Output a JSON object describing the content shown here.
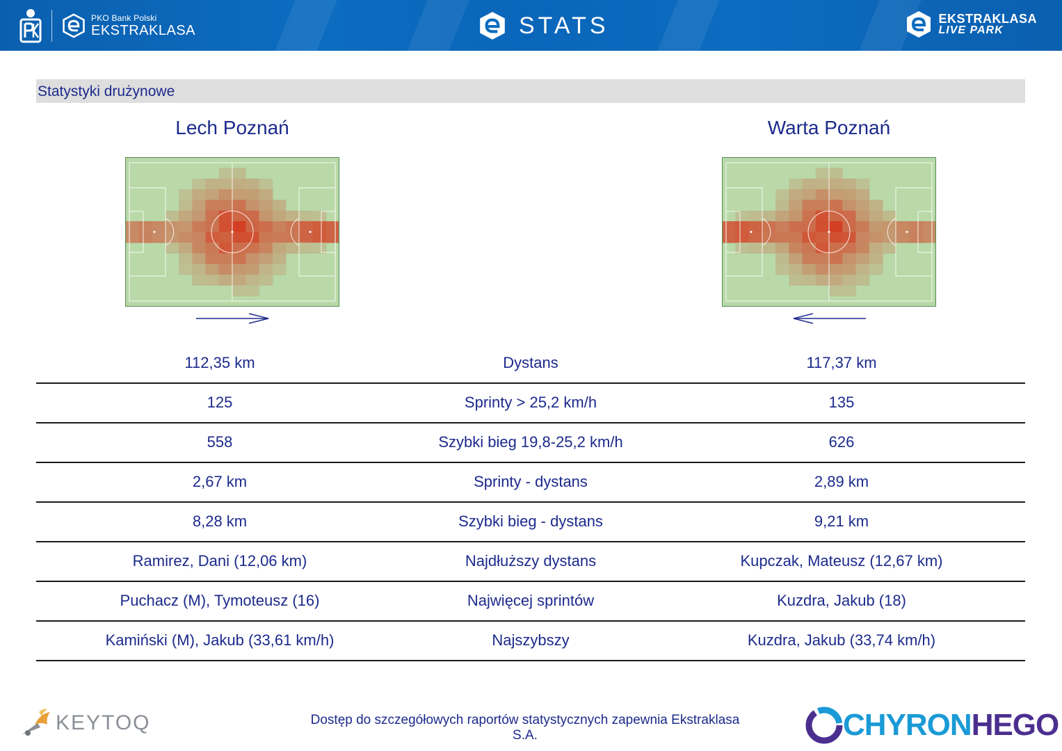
{
  "header": {
    "bank_small": "PKO Bank Polski",
    "league_name": "EKSTRAKLASA",
    "stats_title": "STATS",
    "live_line1": "EKSTRAKLASA",
    "live_line2": "LIVE PARK",
    "bar_color": "#0c6cc0"
  },
  "section": {
    "title": "Statystyki drużynowe"
  },
  "teams": {
    "home": {
      "name": "Lech Poznań",
      "attack_direction": "right"
    },
    "away": {
      "name": "Warta Poznań",
      "attack_direction": "left"
    }
  },
  "stats": [
    {
      "label": "Dystans",
      "home": "112,35 km",
      "away": "117,37 km"
    },
    {
      "label": "Sprinty > 25,2 km/h",
      "home": "125",
      "away": "135"
    },
    {
      "label": "Szybki bieg 19,8-25,2 km/h",
      "home": "558",
      "away": "626"
    },
    {
      "label": "Sprinty - dystans",
      "home": "2,67 km",
      "away": "2,89 km"
    },
    {
      "label": "Szybki bieg - dystans",
      "home": "8,28 km",
      "away": "9,21 km"
    },
    {
      "label": "Najdłuższy dystans",
      "home": "Ramirez, Dani (12,06 km)",
      "away": "Kupczak, Mateusz (12,67 km)"
    },
    {
      "label": "Najwięcej sprintów",
      "home": "Puchacz (M), Tymoteusz (16)",
      "away": "Kuzdra, Jakub (18)"
    },
    {
      "label": "Najszybszy",
      "home": "Kamiński (M), Jakub (33,61 km/h)",
      "away": "Kuzdra, Jakub (33,74 km/h)"
    }
  ],
  "footer": {
    "keytoq": "KEYTOQ",
    "note": "Dostęp do szczegółowych raportów statystycznych zapewnia Ekstraklasa S.A.",
    "chyron_a": "CHYRON",
    "chyron_b": "HEGO"
  },
  "colors": {
    "text_blue": "#1c2a8c",
    "section_gray": "#dedede",
    "pitch_green": "#b9d9a8",
    "heat_red": "#d8341a"
  }
}
